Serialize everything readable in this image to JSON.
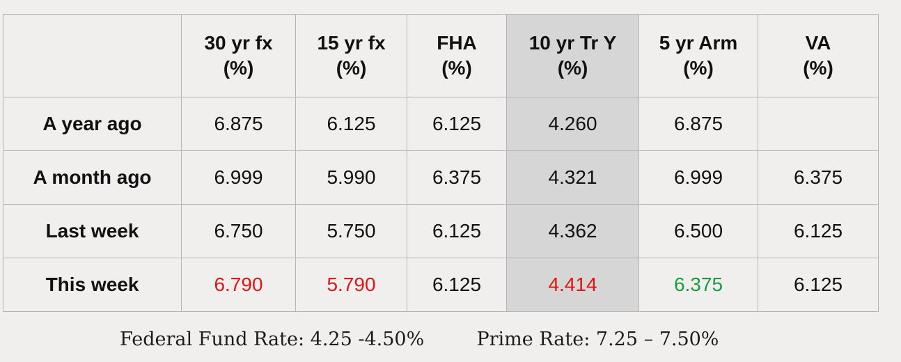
{
  "table": {
    "columns": [
      {
        "line1": "",
        "line2": ""
      },
      {
        "line1": "30 yr fx",
        "line2": "(%)"
      },
      {
        "line1": "15 yr fx",
        "line2": "(%)"
      },
      {
        "line1": "FHA",
        "line2": "(%)"
      },
      {
        "line1": "10 yr Tr Y",
        "line2": "(%)"
      },
      {
        "line1": "5 yr Arm",
        "line2": "(%)"
      },
      {
        "line1": "VA",
        "line2": "(%)"
      }
    ],
    "highlight_column": 4,
    "highlight_color": "#d6d6d6",
    "rows": [
      {
        "label": "A year ago",
        "cells": [
          "6.875",
          "6.125",
          "6.125",
          "4.260",
          "6.875",
          ""
        ]
      },
      {
        "label": "A month ago",
        "cells": [
          "6.999",
          "5.990",
          "6.375",
          "4.321",
          "6.999",
          "6.375"
        ]
      },
      {
        "label": "Last week",
        "cells": [
          "6.750",
          "5.750",
          "6.125",
          "4.362",
          "6.500",
          "6.125"
        ]
      },
      {
        "label": "This week",
        "cells": [
          "6.790",
          "5.790",
          "6.125",
          "4.414",
          "6.375",
          "6.125"
        ],
        "cell_colors": [
          "#e01414",
          "#e01414",
          "",
          "#e01414",
          "#169d3e",
          ""
        ]
      }
    ]
  },
  "footer": {
    "federal_fund_label": "Federal Fund Rate:",
    "federal_fund_value": "4.25 -4.50%",
    "prime_label": "Prime Rate:",
    "prime_value": "7.25 – 7.50%"
  }
}
